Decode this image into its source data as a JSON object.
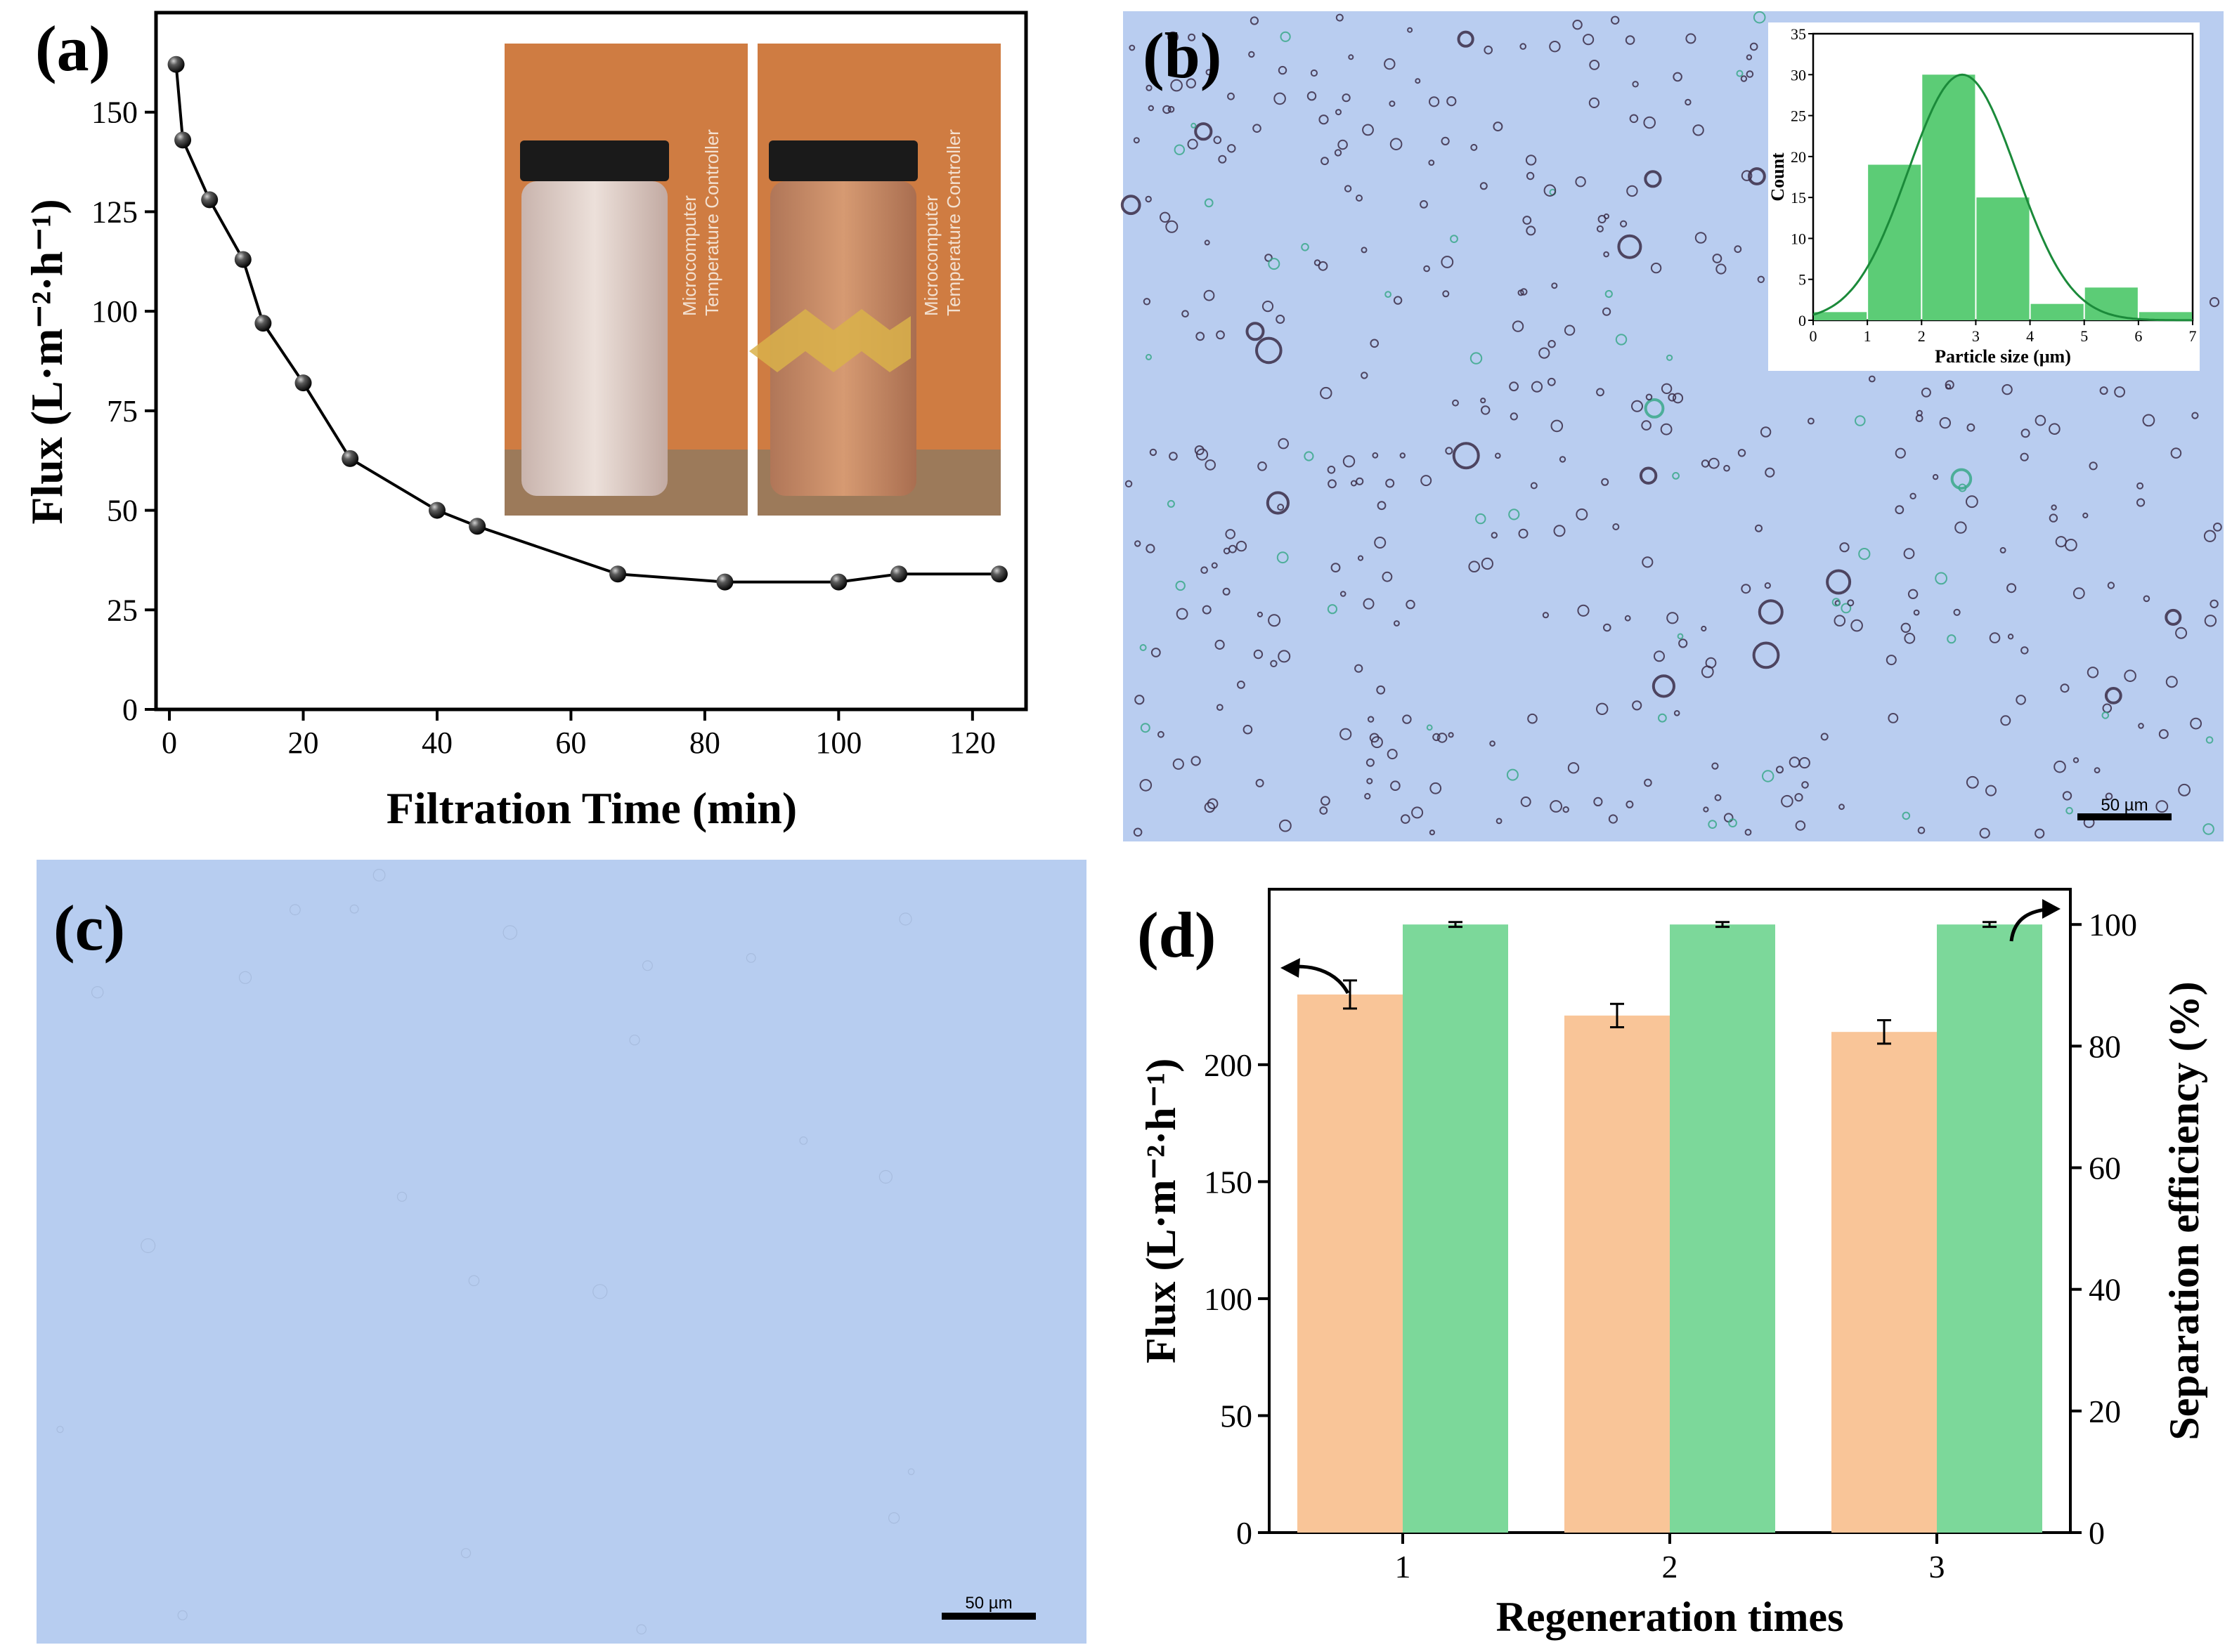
{
  "panels": {
    "a": {
      "letter": "(a)"
    },
    "b": {
      "letter": "(b)",
      "scale_bar": "50 µm",
      "background": "#b9cdf0"
    },
    "c": {
      "letter": "(c)",
      "scale_bar": "50 µm",
      "background": "#b7cdf0"
    },
    "d": {
      "letter": "(d)"
    }
  },
  "inset_photo": {
    "label_line1": "Microcomputer",
    "label_line2": "Temperature Controller"
  },
  "colors": {
    "line": "#000000",
    "hist_bar": "#5ccc76",
    "hist_curve": "#1b8a3a",
    "flux_bar": "#f9c598",
    "sep_bar": "#7cd89a",
    "photo_bg": "#cf7c42"
  },
  "chart_data": [
    {
      "id": "a",
      "type": "line",
      "xlabel": "Filtration Time (min)",
      "ylabel": "Flux (L·m⁻²·h⁻¹)",
      "xlim": [
        -2,
        128
      ],
      "ylim": [
        0,
        175
      ],
      "xticks": [
        0,
        20,
        40,
        60,
        80,
        100,
        120
      ],
      "yticks": [
        0,
        25,
        50,
        75,
        100,
        125,
        150
      ],
      "x": [
        1,
        2,
        6,
        11,
        14,
        20,
        27,
        40,
        46,
        67,
        83,
        100,
        109,
        124
      ],
      "y": [
        162,
        143,
        128,
        113,
        97,
        82,
        63,
        50,
        46,
        34,
        32,
        32,
        34,
        34
      ]
    },
    {
      "id": "b-inset",
      "type": "bar",
      "xlabel": "Particle size (μm)",
      "ylabel": "Count",
      "xlim": [
        0,
        7
      ],
      "ylim": [
        0,
        35
      ],
      "xticks": [
        0,
        1,
        2,
        3,
        4,
        5,
        6,
        7
      ],
      "yticks": [
        0,
        5,
        10,
        15,
        20,
        25,
        30,
        35
      ],
      "bin_edges": [
        0,
        1,
        2,
        3,
        4,
        5,
        6,
        7
      ],
      "values": [
        1,
        19,
        30,
        15,
        2,
        4,
        1
      ],
      "fit": {
        "type": "gaussian",
        "mean": 2.75,
        "sigma": 1.0,
        "peak": 30
      }
    },
    {
      "id": "d",
      "type": "bar",
      "xlabel": "Regeneration times",
      "ylabel_left": "Flux (L·m⁻²·h⁻¹)",
      "ylabel_right": "Separation efficiency (%)",
      "categories": [
        "1",
        "2",
        "3"
      ],
      "ylim_left": [
        0,
        275
      ],
      "ylim_right": [
        0,
        105.8
      ],
      "yticks_left": [
        0,
        50,
        100,
        150,
        200
      ],
      "yticks_right": [
        0,
        20,
        40,
        60,
        80,
        100
      ],
      "series": [
        {
          "axis": "left",
          "values": [
            230,
            221,
            214
          ],
          "errors": [
            6,
            5,
            5
          ]
        },
        {
          "axis": "right",
          "values": [
            100,
            100,
            100
          ],
          "errors": [
            0.4,
            0.4,
            0.4
          ]
        }
      ]
    }
  ]
}
